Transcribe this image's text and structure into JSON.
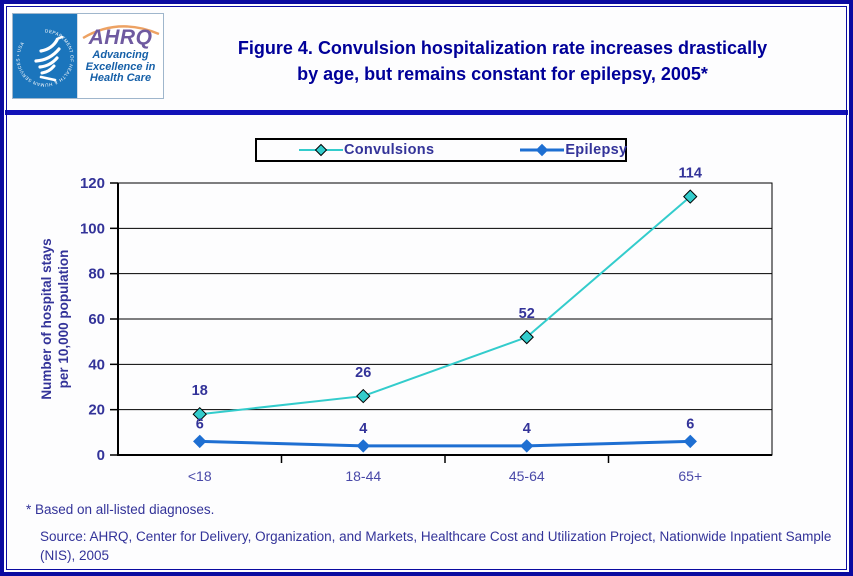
{
  "header": {
    "logo": {
      "hhs_seal_text": "DEPARTMENT OF HEALTH & HUMAN SERVICES • USA",
      "ahrq_acronym": "AHRQ",
      "ahrq_tagline": "Advancing Excellence in Health Care"
    },
    "title_lines": [
      "Figure 4. Convulsion hospitalization rate increases drastically",
      "by age, but remains constant for epilepsy, 2005*"
    ]
  },
  "chart_data": {
    "type": "line",
    "title": "Figure 4. Convulsion hospitalization rate increases drastically by age, but remains constant for epilepsy, 2005*",
    "categories": [
      "<18",
      "18-44",
      "45-64",
      "65+"
    ],
    "series": [
      {
        "name": "Convulsions",
        "values": [
          18,
          26,
          52,
          114
        ],
        "color": "#33cccc",
        "marker": "diamond",
        "marker_outline": "#000000"
      },
      {
        "name": "Epilepsy",
        "values": [
          6,
          4,
          4,
          6
        ],
        "color": "#1e6fd2",
        "marker": "diamond",
        "marker_outline": "#1e6fd2"
      }
    ],
    "ylabel_lines": [
      "Number of hospital stays",
      "per 10,000 population"
    ],
    "xlabel": "",
    "ylim": [
      0,
      120
    ],
    "ytick_step": 20,
    "grid": true,
    "legend_position": "top",
    "data_labels": true
  },
  "footer": {
    "footnote": "* Based on all-listed diagnoses.",
    "source_lines": [
      "Source: AHRQ, Center for Delivery, Organization, and Markets, Healthcare Cost and Utilization Project, Nationwide Inpatient Sample",
      "(NIS), 2005"
    ]
  },
  "colors": {
    "page_border": "#0a0aa0",
    "divider": "#1212b8",
    "title_text": "#000099",
    "axis_text": "#333399",
    "convulsions_line": "#33cccc",
    "epilepsy_line": "#1e6fd2",
    "hhs_blue": "#1b75bc",
    "ahrq_purple": "#6f5aa0",
    "ahrq_orange": "#eda263",
    "tagline_blue": "#1660a8"
  }
}
